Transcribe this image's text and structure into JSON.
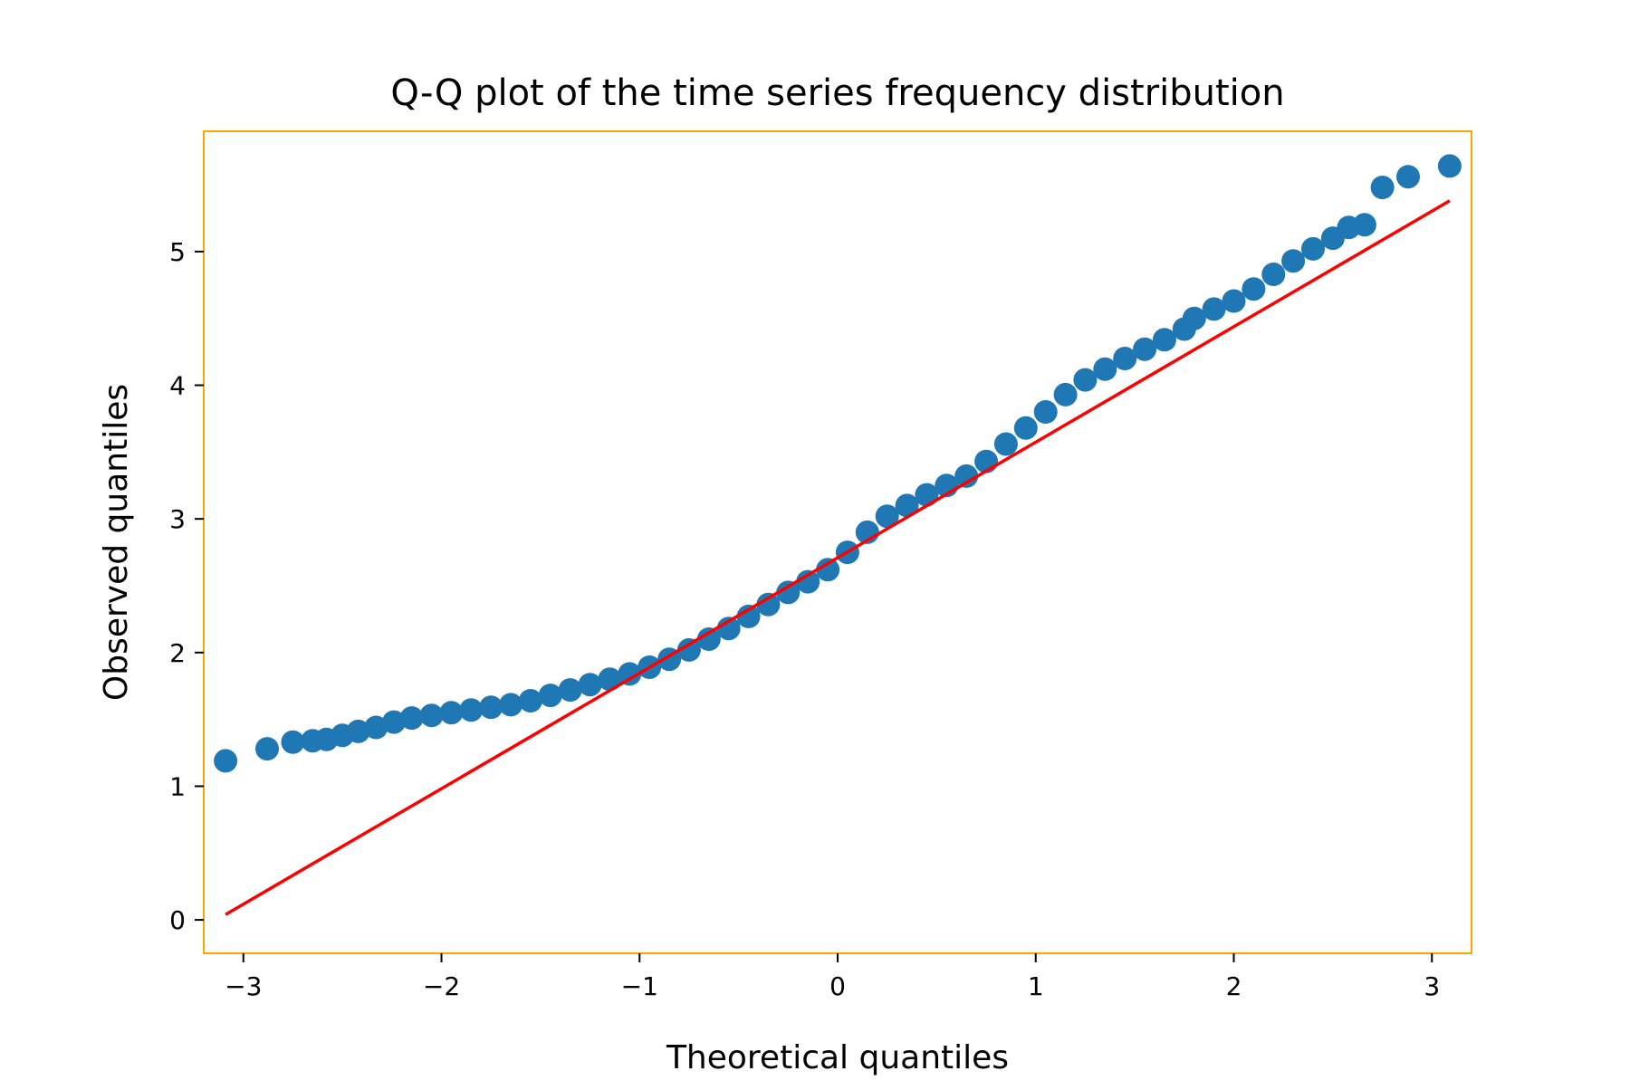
{
  "chart_data": {
    "type": "scatter",
    "title": "Q-Q plot of the time series frequency distribution",
    "xlabel": "Theoretical quantiles",
    "ylabel": "Observed quantiles",
    "xlim": [
      -3.2,
      3.2
    ],
    "ylim": [
      -0.25,
      5.9
    ],
    "xticks": [
      -3,
      -2,
      -1,
      0,
      1,
      2,
      3
    ],
    "xtick_labels": [
      "−3",
      "−2",
      "−1",
      "0",
      "1",
      "2",
      "3"
    ],
    "yticks": [
      0,
      1,
      2,
      3,
      4,
      5
    ],
    "ytick_labels": [
      "0",
      "1",
      "2",
      "3",
      "4",
      "5"
    ],
    "grid": false,
    "legend": "none",
    "colors": {
      "points": "#1f77b4",
      "fit_line": "#ff0000",
      "frame": "#ffa500"
    },
    "points": {
      "x": [
        -3.09,
        -2.88,
        -2.75,
        -2.65,
        -2.58,
        -2.5,
        -2.42,
        -2.33,
        -2.24,
        -2.15,
        -2.05,
        -1.95,
        -1.85,
        -1.75,
        -1.65,
        -1.55,
        -1.45,
        -1.35,
        -1.25,
        -1.15,
        -1.05,
        -0.95,
        -0.85,
        -0.75,
        -0.65,
        -0.55,
        -0.45,
        -0.35,
        -0.25,
        -0.15,
        -0.05,
        0.05,
        0.15,
        0.25,
        0.35,
        0.45,
        0.55,
        0.65,
        0.75,
        0.85,
        0.95,
        1.05,
        1.15,
        1.25,
        1.35,
        1.45,
        1.55,
        1.65,
        1.75,
        1.8,
        1.9,
        2.0,
        2.1,
        2.2,
        2.3,
        2.4,
        2.5,
        2.58,
        2.66,
        2.75,
        2.88,
        3.09
      ],
      "y": [
        1.19,
        1.28,
        1.33,
        1.34,
        1.35,
        1.38,
        1.41,
        1.44,
        1.48,
        1.51,
        1.53,
        1.55,
        1.57,
        1.59,
        1.61,
        1.64,
        1.68,
        1.72,
        1.76,
        1.8,
        1.84,
        1.89,
        1.95,
        2.02,
        2.1,
        2.18,
        2.27,
        2.36,
        2.45,
        2.53,
        2.62,
        2.75,
        2.9,
        3.02,
        3.1,
        3.18,
        3.25,
        3.32,
        3.43,
        3.56,
        3.68,
        3.8,
        3.93,
        4.04,
        4.12,
        4.2,
        4.27,
        4.34,
        4.42,
        4.5,
        4.57,
        4.63,
        4.72,
        4.83,
        4.93,
        5.02,
        5.1,
        5.18,
        5.2,
        5.48,
        5.56,
        5.64
      ]
    },
    "fit_line": {
      "x": [
        -3.09,
        3.09
      ],
      "y": [
        0.04,
        5.38
      ]
    }
  }
}
